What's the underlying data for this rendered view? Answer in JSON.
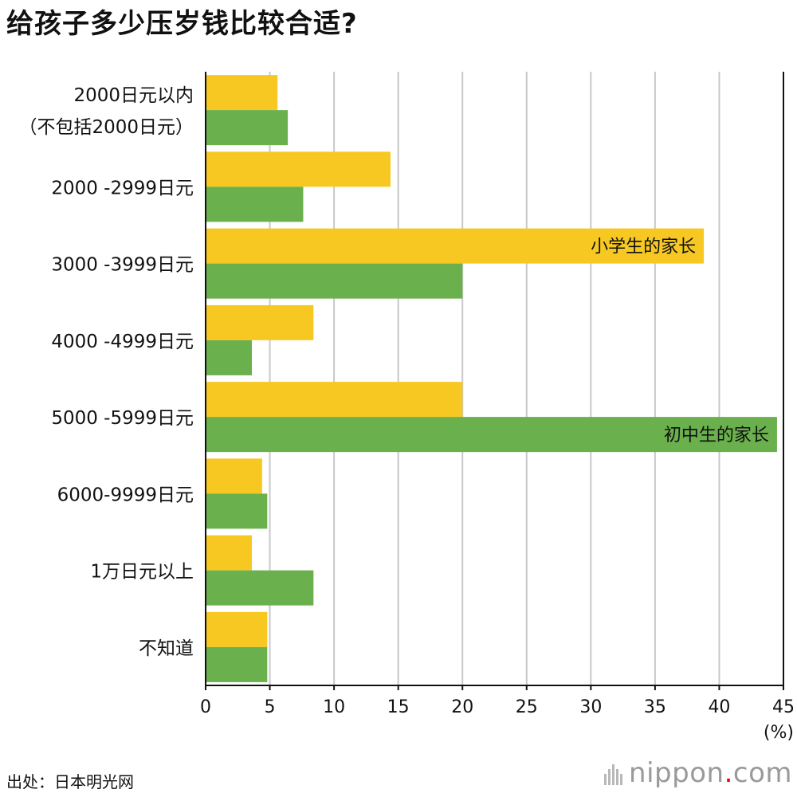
{
  "title": "给孩子多少压岁钱比较合适?",
  "source": "出处：日本明光网",
  "logo": {
    "name": "nippon",
    "dot": ".",
    "suffix": "com",
    "dot_color": "#e60012"
  },
  "chart_data": {
    "type": "bar",
    "orientation": "horizontal",
    "categories": [
      [
        "2000日元以内",
        "（不包括2000日元）"
      ],
      [
        "2000 -2999日元"
      ],
      [
        "3000 -3999日元"
      ],
      [
        "4000 -4999日元"
      ],
      [
        "5000 -5999日元"
      ],
      [
        "6000-9999日元"
      ],
      [
        "1万日元以上"
      ],
      [
        "不知道"
      ]
    ],
    "series": [
      {
        "name": "小学生的家长",
        "color": "#f8c822",
        "values": [
          5.6,
          14.4,
          38.8,
          8.4,
          20.0,
          4.4,
          3.6,
          4.8
        ],
        "label_category_index": 2
      },
      {
        "name": "初中生的家长",
        "color": "#6ab04c",
        "values": [
          6.4,
          7.6,
          20.0,
          3.6,
          44.5,
          4.8,
          8.4,
          4.8
        ],
        "label_category_index": 4
      }
    ],
    "xlim": [
      0,
      45
    ],
    "xticks": [
      0,
      5,
      10,
      15,
      20,
      25,
      30,
      35,
      40,
      45
    ],
    "xunit": "(%)",
    "grid": true,
    "grid_color": "#c8c8c8",
    "axis_color": "#111111"
  }
}
